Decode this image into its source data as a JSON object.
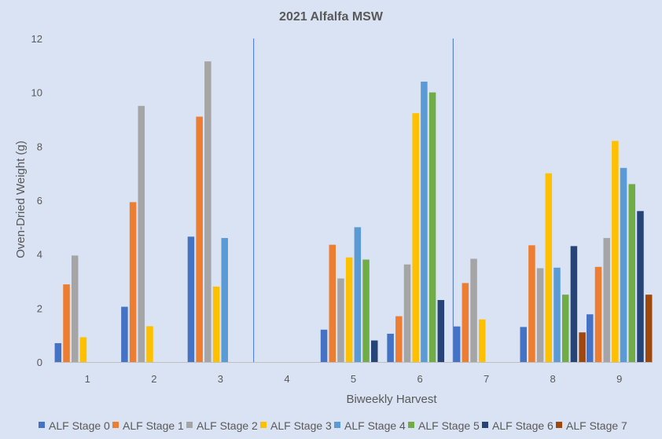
{
  "chart_data": {
    "type": "bar",
    "title": "2021 Alfalfa MSW",
    "xlabel": "Biweekly Harvest",
    "ylabel": "Oven-Dried Weight (g)",
    "ylim": [
      0,
      12
    ],
    "yticks": [
      0,
      2,
      4,
      6,
      8,
      10,
      12
    ],
    "grid": false,
    "legend_position": "bottom",
    "categories": [
      "1",
      "2",
      "3",
      "4",
      "5",
      "6",
      "7",
      "8",
      "9"
    ],
    "series": [
      {
        "name": "ALF Stage 0",
        "color": "#4472c4",
        "values": [
          0.7,
          2.05,
          4.65,
          null,
          1.2,
          1.05,
          1.32,
          1.3,
          1.77
        ]
      },
      {
        "name": "ALF Stage 1",
        "color": "#ed7d31",
        "values": [
          2.88,
          5.93,
          9.1,
          null,
          4.35,
          1.7,
          2.93,
          4.33,
          3.53
        ]
      },
      {
        "name": "ALF Stage 2",
        "color": "#a5a5a5",
        "values": [
          3.95,
          9.5,
          11.15,
          null,
          3.1,
          3.62,
          3.83,
          3.48,
          4.6
        ]
      },
      {
        "name": "ALF Stage 3",
        "color": "#ffc000",
        "values": [
          0.92,
          1.33,
          2.8,
          null,
          3.88,
          9.23,
          1.58,
          7.0,
          8.2
        ]
      },
      {
        "name": "ALF Stage 4",
        "color": "#5b9bd5",
        "values": [
          null,
          null,
          4.6,
          null,
          5.0,
          10.4,
          null,
          3.5,
          7.2
        ]
      },
      {
        "name": "ALF Stage 5",
        "color": "#70ad47",
        "values": [
          null,
          null,
          null,
          null,
          3.8,
          10.0,
          null,
          2.5,
          6.6
        ]
      },
      {
        "name": "ALF Stage 6",
        "color": "#264478",
        "values": [
          null,
          null,
          null,
          null,
          0.8,
          2.3,
          null,
          4.3,
          5.6
        ]
      },
      {
        "name": "ALF Stage 7",
        "color": "#9e480e",
        "values": [
          null,
          null,
          null,
          null,
          null,
          null,
          null,
          1.1,
          2.5
        ]
      }
    ],
    "vertical_reference_lines_after_categories": [
      "3",
      "6"
    ]
  }
}
